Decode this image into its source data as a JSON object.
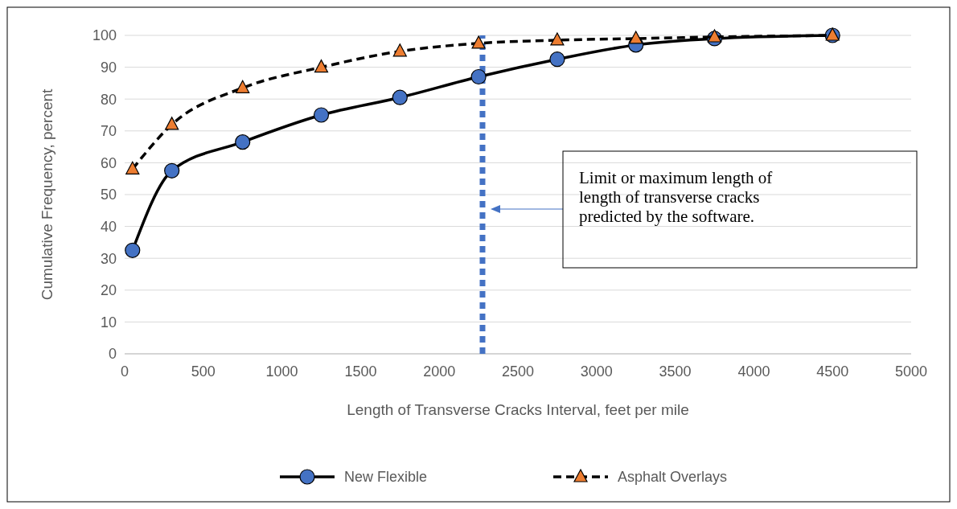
{
  "chart_data": {
    "type": "line",
    "xlabel": "Length of Transverse Cracks Interval, feet per mile",
    "ylabel": "Cumulative Frequency, percent",
    "xlim": [
      0,
      5000
    ],
    "xticks": [
      0,
      500,
      1000,
      1500,
      2000,
      2500,
      3000,
      3500,
      4000,
      4500,
      5000
    ],
    "ylim": [
      0,
      100
    ],
    "yticks": [
      0,
      10,
      20,
      30,
      40,
      50,
      60,
      70,
      80,
      90,
      100
    ],
    "x": [
      50,
      300,
      750,
      1250,
      1750,
      2250,
      2750,
      3250,
      3750,
      4500
    ],
    "series": [
      {
        "name": "New Flexible",
        "color": "#4472c4",
        "marker": "circle",
        "line_style": "solid",
        "values": [
          32.5,
          57.5,
          66.5,
          75,
          80.5,
          87,
          92.5,
          97,
          99,
          100
        ]
      },
      {
        "name": "Asphalt Overlays",
        "color": "#ed7d31",
        "marker": "triangle",
        "line_style": "dashed",
        "values": [
          58,
          72,
          83.5,
          90,
          95,
          97.5,
          98.5,
          99,
          99.5,
          100
        ]
      }
    ],
    "ref_lines": [
      {
        "axis": "x",
        "value": 2275,
        "color": "#4472c4",
        "line_style": "dotted"
      }
    ],
    "annotations": [
      "Limit or maximum length of length of transverse cracks predicted by the software."
    ],
    "grid": "y",
    "legend": "bottom"
  }
}
